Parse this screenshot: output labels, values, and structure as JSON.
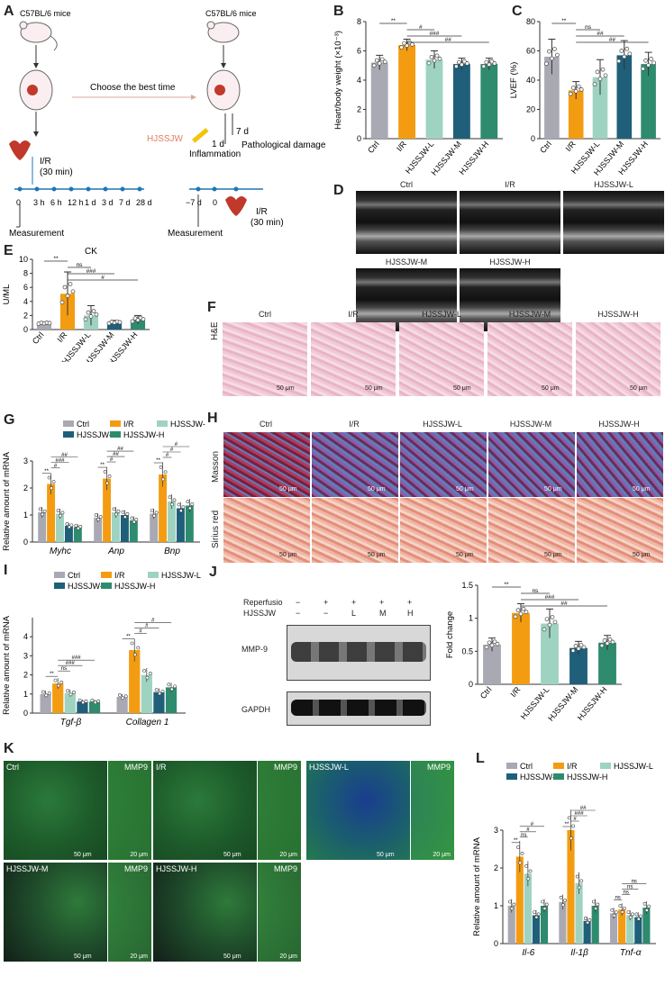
{
  "panels": {
    "A": "A",
    "B": "B",
    "C": "C",
    "D": "D",
    "E": "E",
    "F": "F",
    "G": "G",
    "H": "H",
    "I": "I",
    "J": "J",
    "K": "K",
    "L": "L"
  },
  "colors": {
    "ctrl": "#a9a9b3",
    "ir": "#f39c12",
    "low": "#9fd3c1",
    "mid": "#1f5f7a",
    "high": "#2e8b6e"
  },
  "groups": [
    "Ctrl",
    "I/R",
    "HJSSJW-L",
    "HJSSJW-M",
    "HJSSJW-H"
  ],
  "schematic": {
    "mouse_label": "C57BL/6 mice",
    "choose": "Choose the best time",
    "ir": "I/R",
    "ir_time": "(30 min)",
    "timeline": [
      "0",
      "3 h",
      "6 h",
      "12 h",
      "1 d",
      "3 d",
      "7 d",
      "28 d"
    ],
    "measurement": "Measurement",
    "drug": "HJSSJW",
    "d7": "7 d",
    "d1": "1 d",
    "inflammation": "Inflammation",
    "pathological": "Pathological damage",
    "neg7": "−7 d",
    "zero": "0"
  },
  "chart_data": [
    {
      "id": "B",
      "type": "bar",
      "ylabel": "Heart/body weight (×10⁻³)",
      "ylim": [
        0,
        8
      ],
      "yticks": [
        0,
        2,
        4,
        6,
        8
      ],
      "categories": [
        "Ctrl",
        "I/R",
        "HJSSJW-L",
        "HJSSJW-M",
        "HJSSJW-H"
      ],
      "values": [
        5.2,
        6.4,
        5.4,
        5.1,
        5.1
      ],
      "errors": [
        0.5,
        0.4,
        0.6,
        0.4,
        0.4
      ],
      "annotations": [
        "**",
        "#",
        "###",
        "##"
      ]
    },
    {
      "id": "C",
      "type": "bar",
      "ylabel": "LVEF (%)",
      "ylim": [
        0,
        80
      ],
      "yticks": [
        0,
        20,
        40,
        60,
        80
      ],
      "categories": [
        "Ctrl",
        "I/R",
        "HJSSJW-L",
        "HJSSJW-M",
        "HJSSJW-H"
      ],
      "values": [
        56,
        33,
        42,
        57,
        51
      ],
      "errors": [
        12,
        6,
        12,
        10,
        8
      ],
      "annotations": [
        "**",
        "ns",
        "##",
        "##"
      ]
    },
    {
      "id": "E",
      "type": "bar",
      "title": "CK",
      "ylabel": "U/ML",
      "ylim": [
        0,
        10
      ],
      "yticks": [
        0,
        2,
        4,
        6,
        8,
        10
      ],
      "categories": [
        "Ctrl",
        "I/R",
        "HJSSJW-L",
        "HJSSJW-M",
        "HJSSJW-H"
      ],
      "values": [
        0.9,
        5.1,
        2.0,
        1.0,
        1.4
      ],
      "errors": [
        0.15,
        3.1,
        1.4,
        0.3,
        0.6
      ],
      "annotations": [
        "**",
        "ns",
        "###",
        "#",
        "#"
      ]
    },
    {
      "id": "G",
      "type": "bar",
      "ylabel": "Relative amount of mRNA",
      "ylim": [
        0,
        3
      ],
      "yticks": [
        0,
        1,
        2,
        3
      ],
      "categories": [
        "Myhc",
        "Anp",
        "Bnp"
      ],
      "series": [
        {
          "name": "Ctrl",
          "values": [
            1.1,
            0.9,
            1.05
          ]
        },
        {
          "name": "I/R",
          "values": [
            2.15,
            2.35,
            2.5
          ]
        },
        {
          "name": "HJSSJW-L",
          "values": [
            1.05,
            1.1,
            1.5
          ]
        },
        {
          "name": "HJSSJW-M",
          "values": [
            0.6,
            1.0,
            1.25
          ]
        },
        {
          "name": "HJSSJW-H",
          "values": [
            0.55,
            0.8,
            1.35
          ]
        }
      ],
      "annotations": [
        "**",
        "#",
        "###",
        "##",
        "**",
        "#",
        "##",
        "##",
        "**",
        "#",
        "#",
        "#"
      ]
    },
    {
      "id": "I",
      "type": "bar",
      "ylabel": "Relative amount of mRNA",
      "ylim": [
        0,
        5
      ],
      "yticks": [
        0,
        1,
        2,
        3,
        4
      ],
      "categories": [
        "Tgf-β",
        "Collagen 1"
      ],
      "series": [
        {
          "name": "Ctrl",
          "values": [
            1.0,
            0.85
          ]
        },
        {
          "name": "I/R",
          "values": [
            1.55,
            3.3
          ]
        },
        {
          "name": "HJSSJW-L",
          "values": [
            1.05,
            2.0
          ]
        },
        {
          "name": "HJSSJW-M",
          "values": [
            0.6,
            1.1
          ]
        },
        {
          "name": "HJSSJW-H",
          "values": [
            0.6,
            1.35
          ]
        }
      ],
      "annotations": [
        "**",
        "ns",
        "###",
        "###",
        "**",
        "#",
        "#",
        "#"
      ]
    },
    {
      "id": "J",
      "type": "bar",
      "ylabel": "Fold change",
      "ylim": [
        0,
        1.5
      ],
      "yticks": [
        0.0,
        0.5,
        1.0,
        1.5
      ],
      "categories": [
        "Ctrl",
        "I/R",
        "HJSSJW-L",
        "HJSSJW-M",
        "HJSSJW-H"
      ],
      "values": [
        0.6,
        1.08,
        0.92,
        0.55,
        0.63
      ],
      "errors": [
        0.1,
        0.14,
        0.22,
        0.1,
        0.11
      ],
      "annotations": [
        "**",
        "ns",
        "###",
        "##"
      ]
    },
    {
      "id": "L",
      "type": "bar",
      "ylabel": "Relative amount of mRNA",
      "ylim": [
        0,
        3
      ],
      "yticks": [
        0,
        1,
        2,
        3
      ],
      "categories": [
        "Il-6",
        "Il-1β",
        "Tnf-α"
      ],
      "series": [
        {
          "name": "Ctrl",
          "values": [
            1.0,
            1.1,
            0.8
          ]
        },
        {
          "name": "I/R",
          "values": [
            2.3,
            3.0,
            0.9
          ]
        },
        {
          "name": "HJSSJW-L",
          "values": [
            1.85,
            1.6,
            0.75
          ]
        },
        {
          "name": "HJSSJW-M",
          "values": [
            0.75,
            0.6,
            0.7
          ]
        },
        {
          "name": "HJSSJW-H",
          "values": [
            1.0,
            1.0,
            0.95
          ]
        }
      ],
      "annotations": [
        "**",
        "ns",
        "#",
        "#",
        "**",
        "#",
        "###",
        "##",
        "ns",
        "ns",
        "ns",
        "ns"
      ]
    }
  ],
  "echo": {
    "tiles": [
      "Ctrl",
      "I/R",
      "HJSSJW-L",
      "HJSSJW-M",
      "HJSSJW-H"
    ]
  },
  "histo": {
    "he_row": "H&E",
    "masson_row": "Masson",
    "sirius_row": "Sirius red",
    "scale": "50 μm"
  },
  "blot": {
    "reperfusion": "Reperfusio",
    "drug": "HJSSJW",
    "rep_vals": [
      "−",
      "+",
      "+",
      "+",
      "+"
    ],
    "drug_vals": [
      "−",
      "−",
      "L",
      "M",
      "H"
    ],
    "mmp": "MMP-9",
    "gapdh": "GAPDH"
  },
  "fluor": {
    "stain": "MMP9",
    "scale_big": "50 μm",
    "scale_small": "20 μm",
    "tiles": [
      "Ctrl",
      "I/R",
      "HJSSJW-L",
      "HJSSJW-M",
      "HJSSJW-H"
    ]
  }
}
